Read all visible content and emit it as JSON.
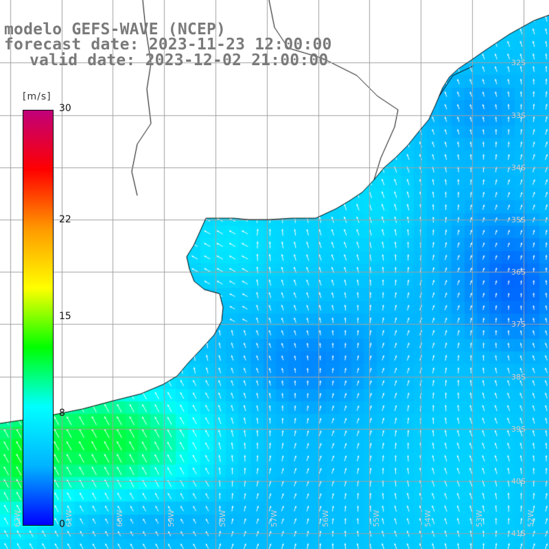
{
  "title": {
    "line1": "modelo GEFS-WAVE (NCEP)",
    "line2": "forecast date: 2023-11-23 12:00:00",
    "line3": "valid date: 2023-12-02 21:00:00"
  },
  "colorbar": {
    "unit": "[m/s]",
    "min": 0,
    "max": 30,
    "ticks": [
      "30",
      "22",
      "15",
      "8",
      "0"
    ],
    "tick_values": [
      30,
      22,
      15,
      8,
      0
    ],
    "colors": [
      "#0000ff",
      "#00b4ff",
      "#00ffff",
      "#00ff00",
      "#ffff00",
      "#ff9900",
      "#ff0000",
      "#c0007a"
    ]
  },
  "map": {
    "lat_labels": [
      "32S",
      "33S",
      "34S",
      "35S",
      "36S",
      "37S",
      "38S",
      "39S",
      "40S",
      "41S"
    ],
    "lat_values": [
      -32,
      -33,
      -34,
      -35,
      -36,
      -37,
      -38,
      -39,
      -40,
      -41
    ],
    "lon_labels": [
      "62W",
      "61W",
      "60W",
      "59W",
      "58W",
      "57W",
      "56W",
      "55W",
      "54W",
      "53W",
      "52W"
    ],
    "lon_values": [
      -62,
      -61,
      -60,
      -59,
      -58,
      -57,
      -56,
      -55,
      -54,
      -53,
      -52
    ],
    "extent": {
      "lon_min": -62.2,
      "lon_max": -51.5,
      "lat_min": -41.3,
      "lat_max": -30.8
    },
    "land_color": "#ffffff",
    "grid_color": "#a0a0a0",
    "coast_color": "#000000",
    "arrow_color": "#ffffff"
  }
}
